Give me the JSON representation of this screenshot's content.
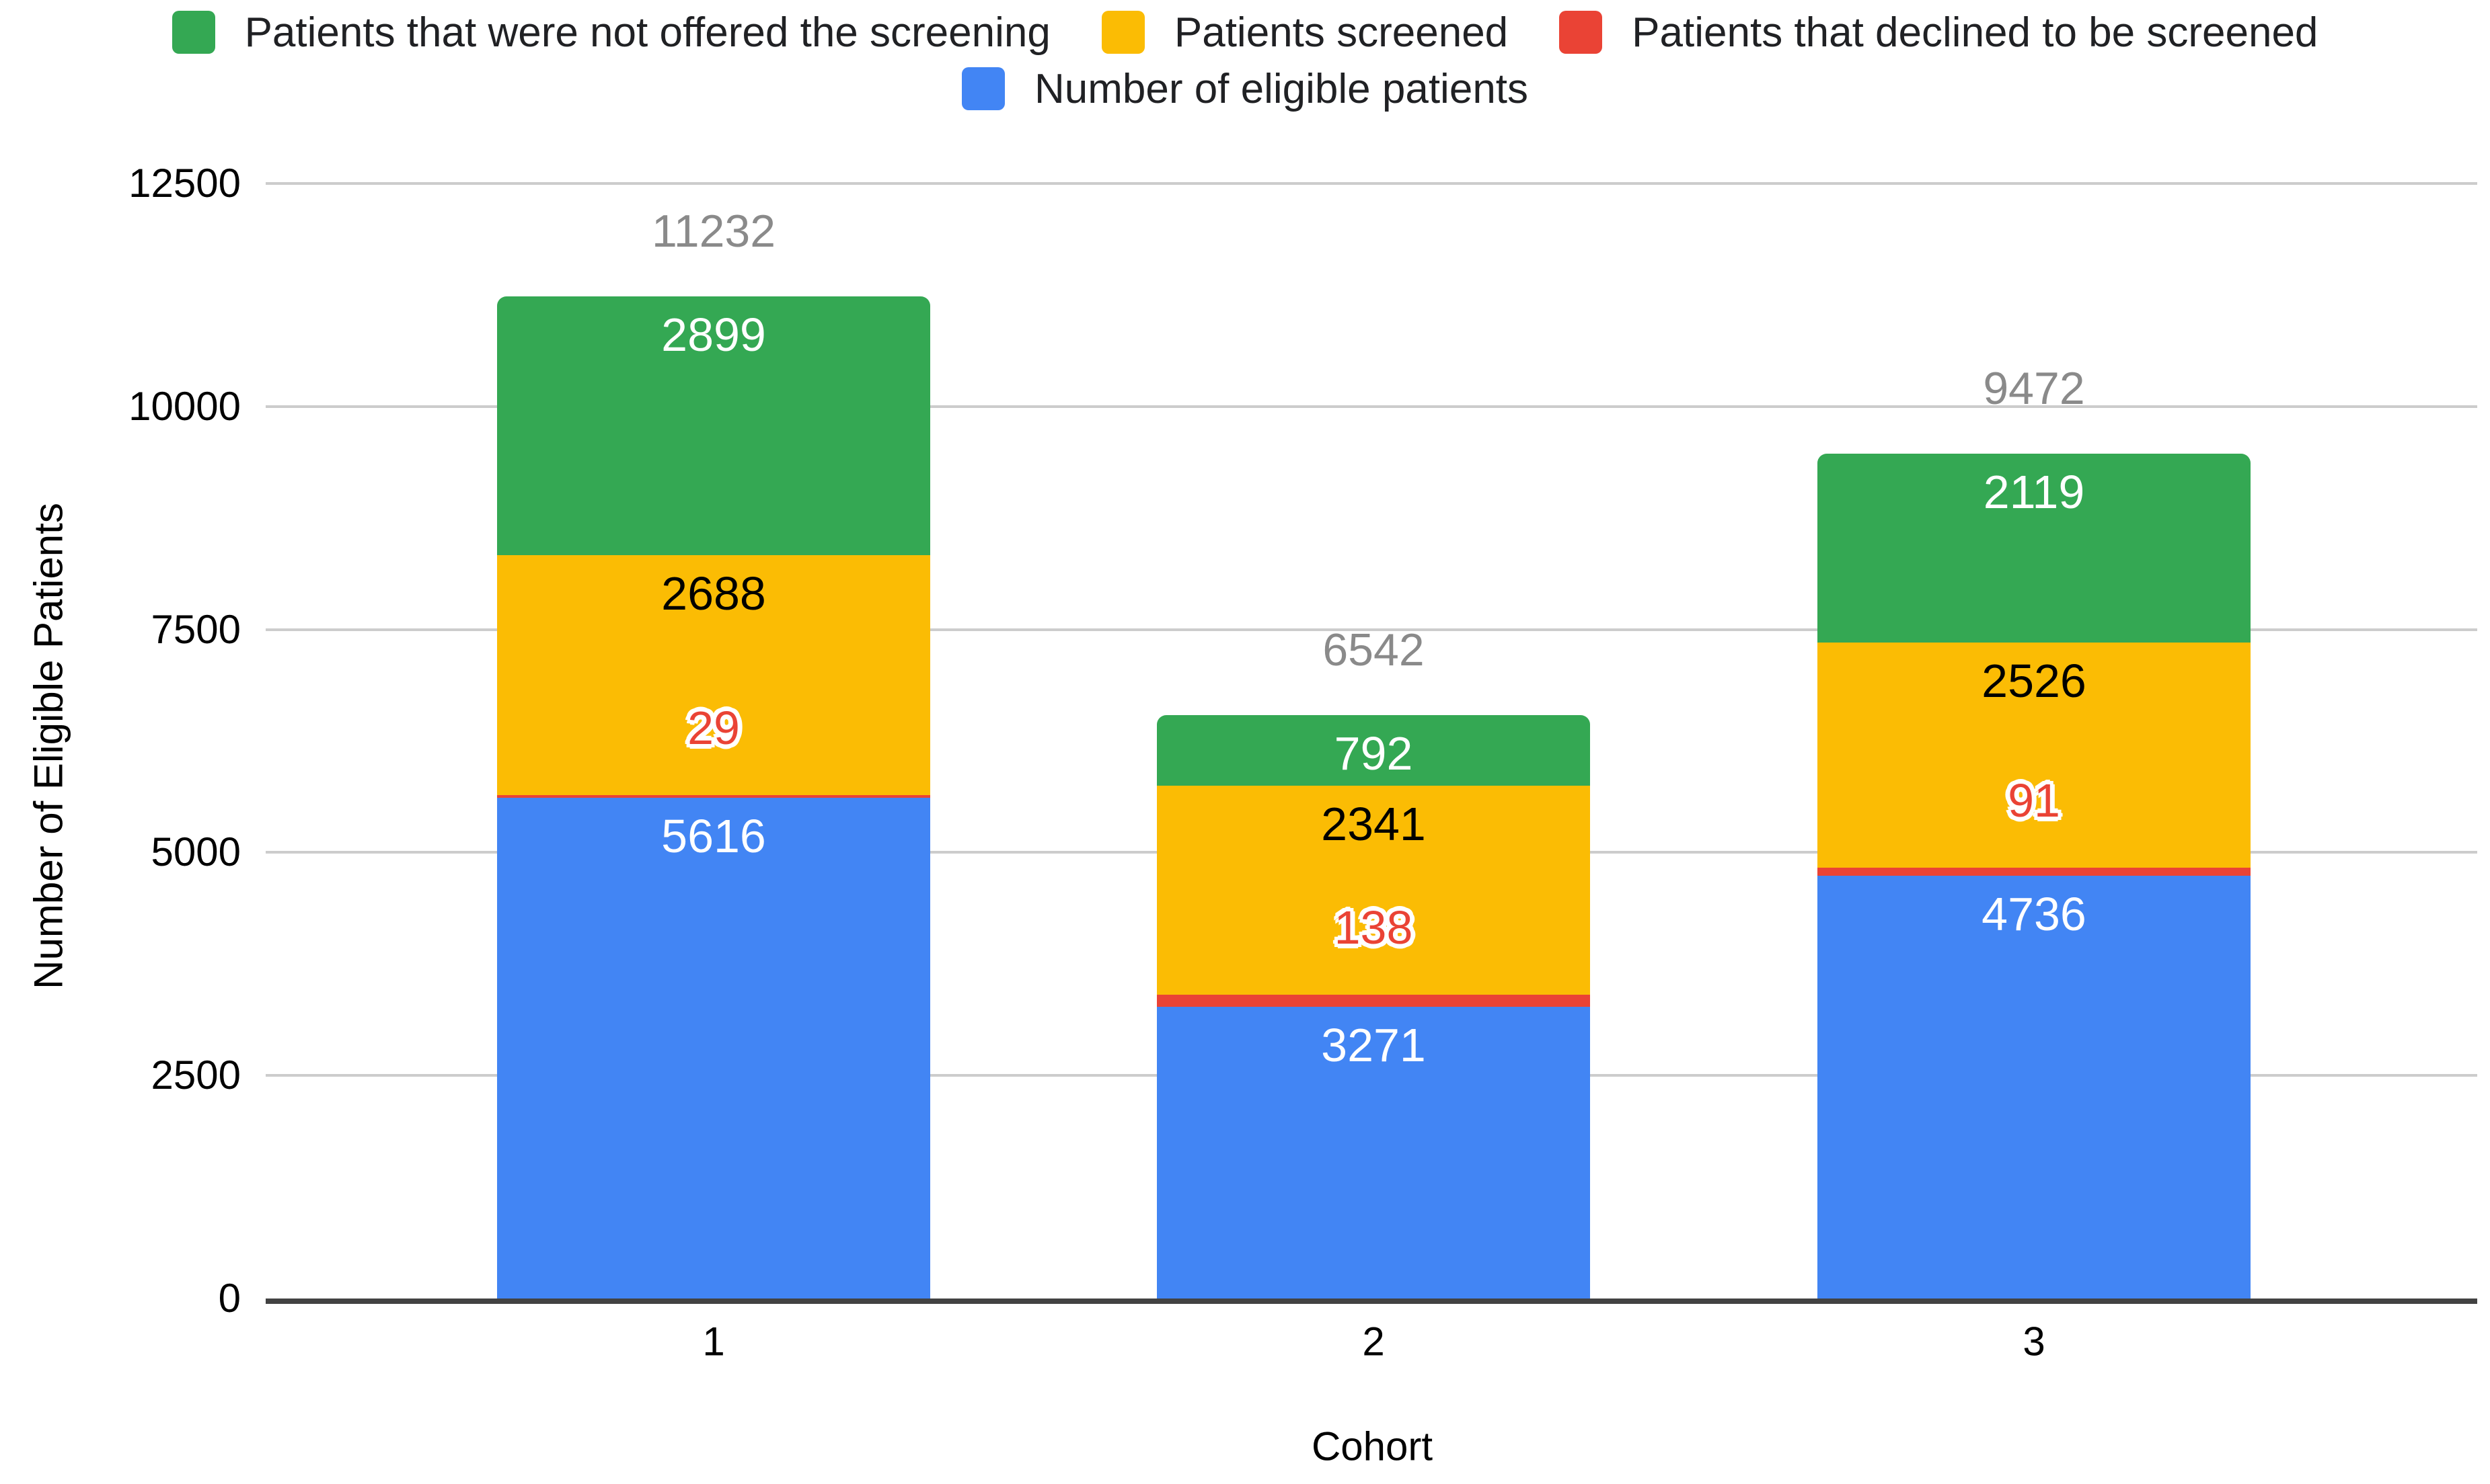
{
  "chart_data": {
    "type": "bar",
    "stacked": true,
    "categories": [
      "1",
      "2",
      "3"
    ],
    "series": [
      {
        "name": "Patients that were not offered the screening",
        "color": "#34A853",
        "values": [
          2899,
          792,
          2119
        ],
        "label_color": "#ffffff",
        "label_outline": false
      },
      {
        "name": "Patients screened",
        "color": "#FBBC04",
        "values": [
          2688,
          2341,
          2526
        ],
        "label_color": "#000000",
        "label_outline": false
      },
      {
        "name": "Patients that declined to be screened",
        "color": "#EA4335",
        "values": [
          29,
          138,
          91
        ],
        "label_color": "#EA4335",
        "label_outline": true
      },
      {
        "name": "Number of eligible patients",
        "color": "#4285F4",
        "values": [
          5616,
          3271,
          4736
        ],
        "label_color": "#ffffff",
        "label_outline": false
      }
    ],
    "totals": [
      11232,
      6542,
      9472
    ],
    "total_label_color": "#8a8a8a",
    "xlabel": "Cohort",
    "ylabel": "Number of Eligible Patients",
    "ylim": [
      0,
      12500
    ],
    "yticks": [
      0,
      2500,
      5000,
      7500,
      10000,
      12500
    ],
    "grid": true,
    "legend_position": "top",
    "legend_rows": [
      [
        0,
        1,
        2
      ],
      [
        3
      ]
    ],
    "colors": {
      "gridline": "#cccccc",
      "axis_line": "#424242",
      "tick_text": "#000000",
      "legend_text": "#202124"
    }
  }
}
